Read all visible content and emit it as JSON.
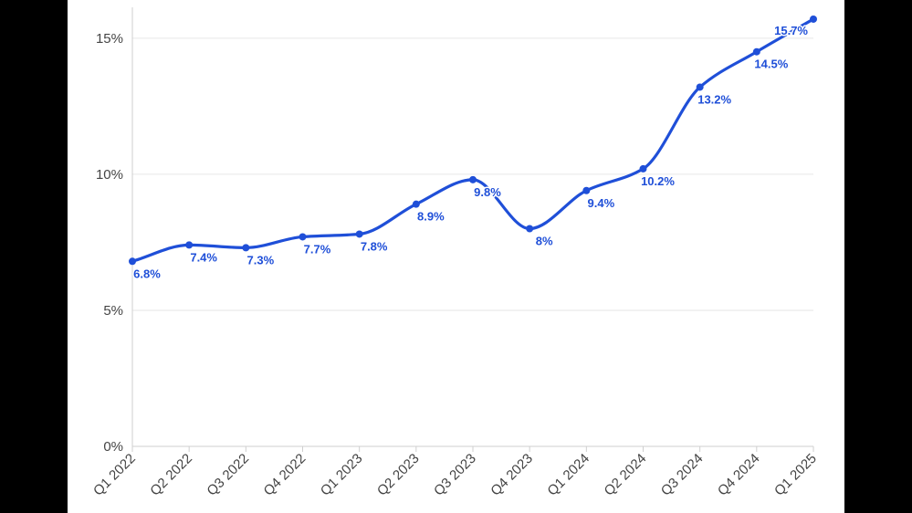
{
  "chart_data": {
    "type": "line",
    "title": "",
    "xlabel": "",
    "ylabel": "",
    "categories": [
      "Q1 2022",
      "Q2 2022",
      "Q3 2022",
      "Q4 2022",
      "Q1 2023",
      "Q2 2023",
      "Q3 2023",
      "Q4 2023",
      "Q1 2024",
      "Q2 2024",
      "Q3 2024",
      "Q4 2024",
      "Q1 2025"
    ],
    "series": [
      {
        "values": [
          6.8,
          7.4,
          7.3,
          7.7,
          7.8,
          8.9,
          9.8,
          8.0,
          9.4,
          10.2,
          13.2,
          14.5,
          15.7
        ],
        "labels": [
          "6.8%",
          "7.4%",
          "7.3%",
          "7.7%",
          "7.8%",
          "8.9%",
          "9.8%",
          "8%",
          "9.4%",
          "10.2%",
          "13.2%",
          "14.5%",
          "15.7%"
        ],
        "color": "#1f4fd8"
      }
    ],
    "ylim": [
      0,
      16
    ],
    "y_ticks": [
      0,
      5,
      10,
      15
    ],
    "y_tick_labels": [
      "0%",
      "5%",
      "10%",
      "15%"
    ],
    "grid": "horizontal",
    "curve": "smooth",
    "legend": "none",
    "colors": {
      "line": "#1f4fd8",
      "grid": "#e6e6e6",
      "axis": "#cfcfcf",
      "background": "#ffffff",
      "frame": "#000000"
    }
  }
}
